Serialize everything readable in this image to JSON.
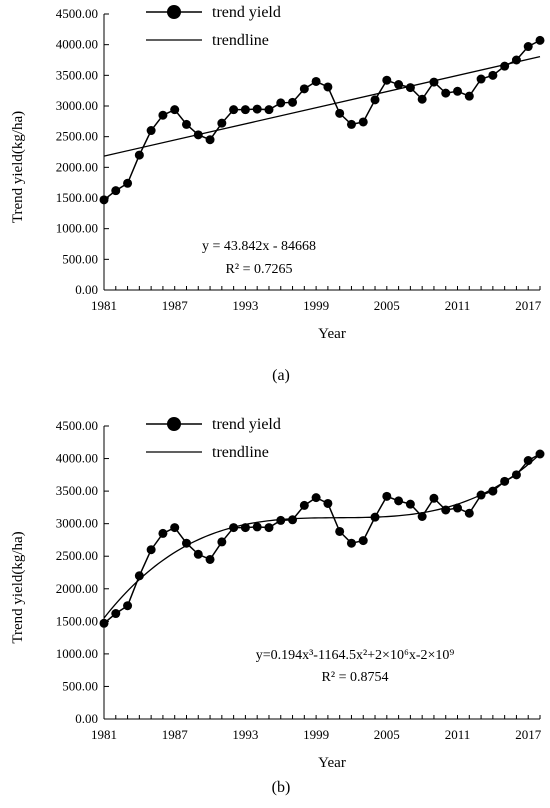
{
  "chart_data": [
    {
      "id": "a",
      "type": "line",
      "panel_label": "(a)",
      "ylabel": "Trend yield(kg/ha)",
      "xlabel": "Year",
      "xlim": [
        1981,
        2018
      ],
      "ylim": [
        0,
        4500
      ],
      "x_ticks": [
        1981,
        1987,
        1993,
        1999,
        2005,
        2011,
        2017
      ],
      "x_tick_labels": [
        "1981",
        "1987",
        "1993",
        "1999",
        "2005",
        "2011",
        "2017"
      ],
      "y_ticks": [
        0,
        500,
        1000,
        1500,
        2000,
        2500,
        3000,
        3500,
        4000,
        4500
      ],
      "y_tick_labels": [
        "0.00",
        "500.00",
        "1000.00",
        "1500.00",
        "2000.00",
        "2500.00",
        "3000.00",
        "3500.00",
        "4000.00",
        "4500.00"
      ],
      "legend": {
        "placement": "top-left",
        "entries": [
          "trend yield",
          "trendline"
        ]
      },
      "annotations": [
        "y = 43.842x - 84668",
        "R² = 0.7265"
      ],
      "trend": {
        "kind": "linear",
        "slope": 43.842,
        "intercept": -84668
      },
      "series": [
        {
          "name": "trend yield",
          "x": [
            1981,
            1982,
            1983,
            1984,
            1985,
            1986,
            1987,
            1988,
            1989,
            1990,
            1991,
            1992,
            1993,
            1994,
            1995,
            1996,
            1997,
            1998,
            1999,
            2000,
            2001,
            2002,
            2003,
            2004,
            2005,
            2006,
            2007,
            2008,
            2009,
            2010,
            2011,
            2012,
            2013,
            2014,
            2015,
            2016,
            2017,
            2018
          ],
          "values": [
            1470,
            1620,
            1740,
            2200,
            2600,
            2850,
            2940,
            2700,
            2530,
            2450,
            2720,
            2940,
            2940,
            2950,
            2940,
            3050,
            3060,
            3280,
            3400,
            3310,
            2880,
            2700,
            2740,
            3100,
            3420,
            3350,
            3300,
            3110,
            3390,
            3210,
            3240,
            3160,
            3440,
            3500,
            3650,
            3750,
            3970,
            4070
          ]
        }
      ]
    },
    {
      "id": "b",
      "type": "line",
      "panel_label": "(b)",
      "ylabel": "Trend yield(kg/ha)",
      "xlabel": "Year",
      "xlim": [
        1981,
        2018
      ],
      "ylim": [
        0,
        4500
      ],
      "x_ticks": [
        1981,
        1987,
        1993,
        1999,
        2005,
        2011,
        2017
      ],
      "x_tick_labels": [
        "1981",
        "1987",
        "1993",
        "1999",
        "2005",
        "2011",
        "2017"
      ],
      "y_ticks": [
        0,
        500,
        1000,
        1500,
        2000,
        2500,
        3000,
        3500,
        4000,
        4500
      ],
      "y_tick_labels": [
        "0.00",
        "500.00",
        "1000.00",
        "1500.00",
        "2000.00",
        "2500.00",
        "3000.00",
        "3500.00",
        "4000.00",
        "4500.00"
      ],
      "legend": {
        "placement": "top-left",
        "entries": [
          "trend yield",
          "trendline"
        ]
      },
      "annotations": [
        "y=0.194x³-1164.5x²+2×10⁶x-2×10⁹",
        "R² = 0.8754"
      ],
      "trend": {
        "kind": "cubic"
      },
      "series": [
        {
          "name": "trend yield",
          "x": [
            1981,
            1982,
            1983,
            1984,
            1985,
            1986,
            1987,
            1988,
            1989,
            1990,
            1991,
            1992,
            1993,
            1994,
            1995,
            1996,
            1997,
            1998,
            1999,
            2000,
            2001,
            2002,
            2003,
            2004,
            2005,
            2006,
            2007,
            2008,
            2009,
            2010,
            2011,
            2012,
            2013,
            2014,
            2015,
            2016,
            2017,
            2018
          ],
          "values": [
            1470,
            1620,
            1740,
            2200,
            2600,
            2850,
            2940,
            2700,
            2530,
            2450,
            2720,
            2940,
            2940,
            2950,
            2940,
            3050,
            3060,
            3280,
            3400,
            3310,
            2880,
            2700,
            2740,
            3100,
            3420,
            3350,
            3300,
            3110,
            3390,
            3210,
            3240,
            3160,
            3440,
            3500,
            3650,
            3750,
            3970,
            4070
          ]
        }
      ]
    }
  ]
}
